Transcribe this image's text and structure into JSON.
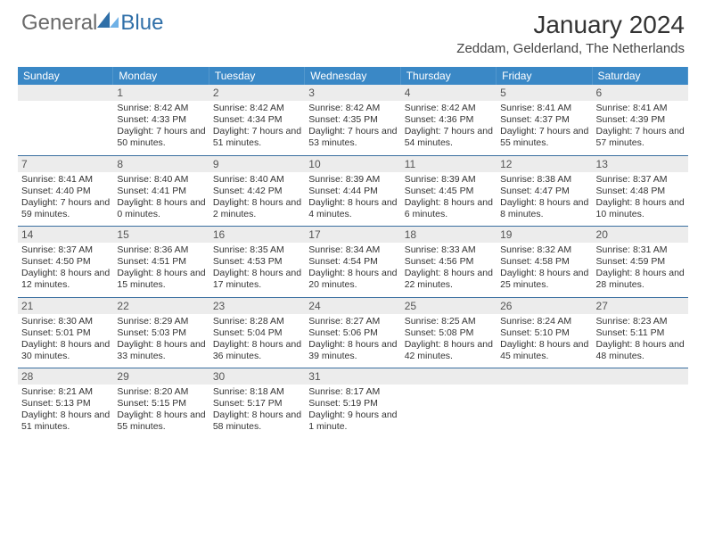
{
  "brand": {
    "general": "General",
    "blue": "Blue"
  },
  "header": {
    "month_title": "January 2024",
    "location": "Zeddam, Gelderland, The Netherlands"
  },
  "colors": {
    "accent": "#3a88c6",
    "header_bg": "#ececec",
    "rule": "#3a6fa0",
    "logo_gray": "#6a6a6a",
    "logo_blue": "#2f6fa8"
  },
  "dow": [
    "Sunday",
    "Monday",
    "Tuesday",
    "Wednesday",
    "Thursday",
    "Friday",
    "Saturday"
  ],
  "weeks": [
    [
      null,
      {
        "n": "1",
        "sr": "8:42 AM",
        "ss": "4:33 PM",
        "dl": "7 hours and 50 minutes."
      },
      {
        "n": "2",
        "sr": "8:42 AM",
        "ss": "4:34 PM",
        "dl": "7 hours and 51 minutes."
      },
      {
        "n": "3",
        "sr": "8:42 AM",
        "ss": "4:35 PM",
        "dl": "7 hours and 53 minutes."
      },
      {
        "n": "4",
        "sr": "8:42 AM",
        "ss": "4:36 PM",
        "dl": "7 hours and 54 minutes."
      },
      {
        "n": "5",
        "sr": "8:41 AM",
        "ss": "4:37 PM",
        "dl": "7 hours and 55 minutes."
      },
      {
        "n": "6",
        "sr": "8:41 AM",
        "ss": "4:39 PM",
        "dl": "7 hours and 57 minutes."
      }
    ],
    [
      {
        "n": "7",
        "sr": "8:41 AM",
        "ss": "4:40 PM",
        "dl": "7 hours and 59 minutes."
      },
      {
        "n": "8",
        "sr": "8:40 AM",
        "ss": "4:41 PM",
        "dl": "8 hours and 0 minutes."
      },
      {
        "n": "9",
        "sr": "8:40 AM",
        "ss": "4:42 PM",
        "dl": "8 hours and 2 minutes."
      },
      {
        "n": "10",
        "sr": "8:39 AM",
        "ss": "4:44 PM",
        "dl": "8 hours and 4 minutes."
      },
      {
        "n": "11",
        "sr": "8:39 AM",
        "ss": "4:45 PM",
        "dl": "8 hours and 6 minutes."
      },
      {
        "n": "12",
        "sr": "8:38 AM",
        "ss": "4:47 PM",
        "dl": "8 hours and 8 minutes."
      },
      {
        "n": "13",
        "sr": "8:37 AM",
        "ss": "4:48 PM",
        "dl": "8 hours and 10 minutes."
      }
    ],
    [
      {
        "n": "14",
        "sr": "8:37 AM",
        "ss": "4:50 PM",
        "dl": "8 hours and 12 minutes."
      },
      {
        "n": "15",
        "sr": "8:36 AM",
        "ss": "4:51 PM",
        "dl": "8 hours and 15 minutes."
      },
      {
        "n": "16",
        "sr": "8:35 AM",
        "ss": "4:53 PM",
        "dl": "8 hours and 17 minutes."
      },
      {
        "n": "17",
        "sr": "8:34 AM",
        "ss": "4:54 PM",
        "dl": "8 hours and 20 minutes."
      },
      {
        "n": "18",
        "sr": "8:33 AM",
        "ss": "4:56 PM",
        "dl": "8 hours and 22 minutes."
      },
      {
        "n": "19",
        "sr": "8:32 AM",
        "ss": "4:58 PM",
        "dl": "8 hours and 25 minutes."
      },
      {
        "n": "20",
        "sr": "8:31 AM",
        "ss": "4:59 PM",
        "dl": "8 hours and 28 minutes."
      }
    ],
    [
      {
        "n": "21",
        "sr": "8:30 AM",
        "ss": "5:01 PM",
        "dl": "8 hours and 30 minutes."
      },
      {
        "n": "22",
        "sr": "8:29 AM",
        "ss": "5:03 PM",
        "dl": "8 hours and 33 minutes."
      },
      {
        "n": "23",
        "sr": "8:28 AM",
        "ss": "5:04 PM",
        "dl": "8 hours and 36 minutes."
      },
      {
        "n": "24",
        "sr": "8:27 AM",
        "ss": "5:06 PM",
        "dl": "8 hours and 39 minutes."
      },
      {
        "n": "25",
        "sr": "8:25 AM",
        "ss": "5:08 PM",
        "dl": "8 hours and 42 minutes."
      },
      {
        "n": "26",
        "sr": "8:24 AM",
        "ss": "5:10 PM",
        "dl": "8 hours and 45 minutes."
      },
      {
        "n": "27",
        "sr": "8:23 AM",
        "ss": "5:11 PM",
        "dl": "8 hours and 48 minutes."
      }
    ],
    [
      {
        "n": "28",
        "sr": "8:21 AM",
        "ss": "5:13 PM",
        "dl": "8 hours and 51 minutes."
      },
      {
        "n": "29",
        "sr": "8:20 AM",
        "ss": "5:15 PM",
        "dl": "8 hours and 55 minutes."
      },
      {
        "n": "30",
        "sr": "8:18 AM",
        "ss": "5:17 PM",
        "dl": "8 hours and 58 minutes."
      },
      {
        "n": "31",
        "sr": "8:17 AM",
        "ss": "5:19 PM",
        "dl": "9 hours and 1 minute."
      },
      null,
      null,
      null
    ]
  ],
  "labels": {
    "sunrise_prefix": "Sunrise: ",
    "sunset_prefix": "Sunset: ",
    "daylight_prefix": "Daylight: "
  }
}
